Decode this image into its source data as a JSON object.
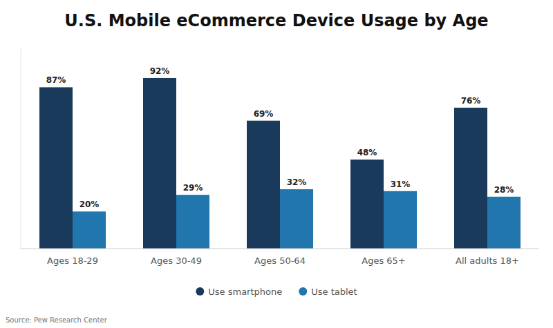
{
  "chart_data": {
    "type": "bar",
    "title": "U.S. Mobile eCommerce Device Usage by Age",
    "categories": [
      "Ages 18-29",
      "Ages 30-49",
      "Ages 50-64",
      "Ages 65+",
      "All adults 18+"
    ],
    "series": [
      {
        "name": "Use smartphone",
        "color": "#1a3a5c",
        "values": [
          87,
          92,
          69,
          48,
          76
        ],
        "value_labels": [
          "87%",
          "92%",
          "69%",
          "48%",
          "76%"
        ]
      },
      {
        "name": "Use tablet",
        "color": "#2176ae",
        "values": [
          20,
          29,
          32,
          31,
          28
        ],
        "value_labels": [
          "20%",
          "29%",
          "32%",
          "31%",
          "28%"
        ]
      }
    ],
    "ylim": [
      0,
      108
    ],
    "data_labels": true,
    "tick_labels": "x",
    "grid": false,
    "legend": "bottom",
    "annotations": [
      "Source: Pew Research Center"
    ]
  }
}
